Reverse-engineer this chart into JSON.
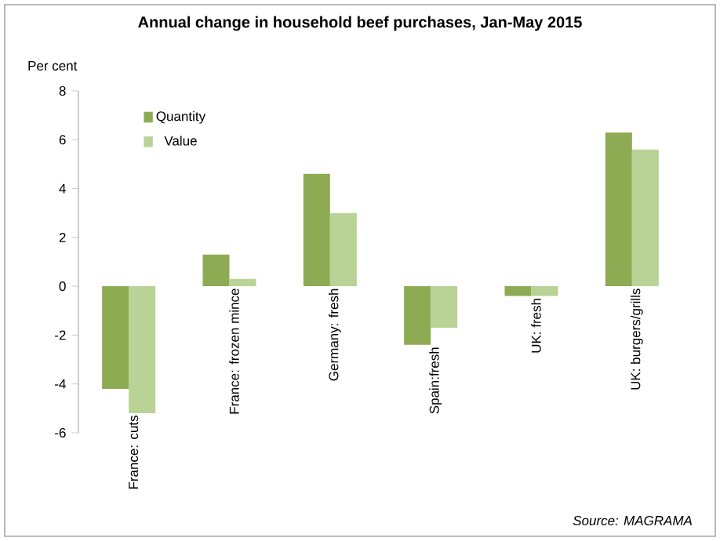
{
  "chart_data": {
    "type": "bar",
    "title": "Annual change in household beef purchases, Jan-May 2015",
    "ylabel": "Per cent",
    "categories": [
      "France: cuts",
      "France: frozen mince",
      "Germany: fresh",
      "Spain:fresh",
      "UK: fresh",
      "UK: burgers/grills"
    ],
    "series": [
      {
        "name": "Quantity",
        "color": "#8cab52",
        "values": [
          -4.2,
          1.3,
          4.6,
          -2.4,
          -0.4,
          6.3
        ]
      },
      {
        "name": "Value",
        "color": "#b9d296",
        "values": [
          -5.2,
          0.3,
          3.0,
          -1.7,
          -0.4,
          5.6
        ]
      }
    ],
    "ylim": [
      -6,
      8
    ],
    "yticks": [
      -6,
      -4,
      -2,
      0,
      2,
      4,
      6,
      8
    ],
    "legend": "top left",
    "annotations": [
      "Source: MAGRAMA"
    ]
  }
}
